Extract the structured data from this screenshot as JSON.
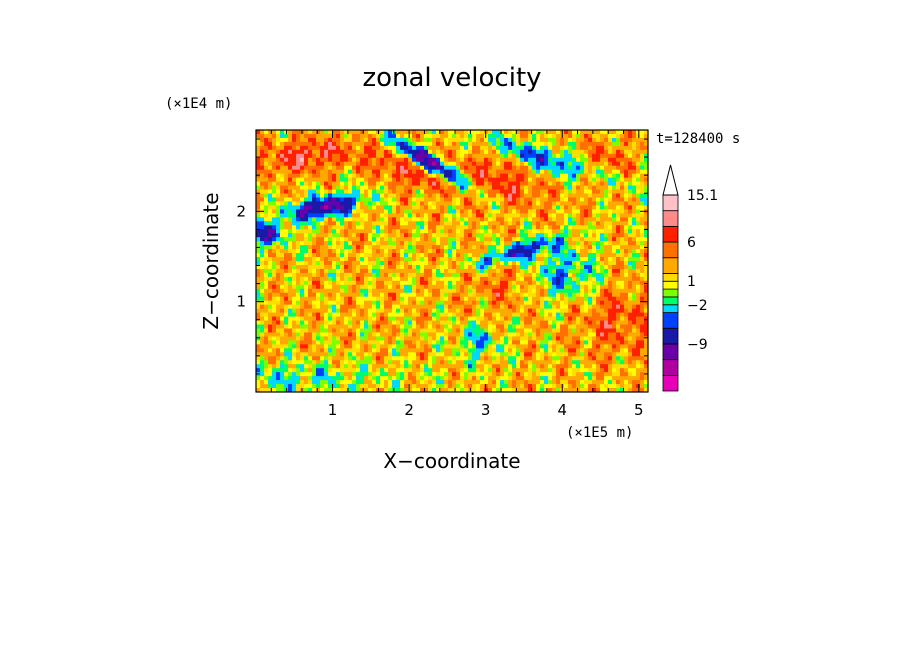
{
  "chart_data": {
    "type": "heatmap",
    "title": "zonal velocity",
    "xlabel": "X−coordinate",
    "ylabel": "Z−coordinate",
    "x_scale_label": "(×1E5 m)",
    "y_scale_label": "(×1E4 m)",
    "time_label": "t=128400 s",
    "xlim": [
      0,
      5.12
    ],
    "ylim": [
      0,
      2.9
    ],
    "x_ticks": [
      1,
      2,
      3,
      4,
      5
    ],
    "x_tick_labels": [
      "1",
      "2",
      "3",
      "4",
      "5"
    ],
    "y_ticks": [
      1,
      2
    ],
    "y_tick_labels": [
      "1",
      "2"
    ],
    "colorbar": {
      "labels": [
        {
          "value": 15.1,
          "text": "15.1"
        },
        {
          "value": 6,
          "text": "6"
        },
        {
          "value": 1,
          "text": "1"
        },
        {
          "value": -2,
          "text": "−2"
        },
        {
          "value": -9,
          "text": "−9"
        }
      ],
      "levels": [
        -15,
        -12,
        -9,
        -6,
        -4,
        -2,
        -1,
        0,
        1,
        2,
        4,
        6,
        9,
        12,
        15.1
      ],
      "colors": [
        "#e800b8",
        "#b000a0",
        "#6c00a8",
        "#1a1aa8",
        "#0040ff",
        "#00d8ff",
        "#00ff66",
        "#7cff00",
        "#ffff00",
        "#ffdd00",
        "#ffa800",
        "#ff7000",
        "#ff2000",
        "#ff8a8a",
        "#ffc0c8"
      ],
      "extend_top_color": "#ffffff"
    }
  }
}
